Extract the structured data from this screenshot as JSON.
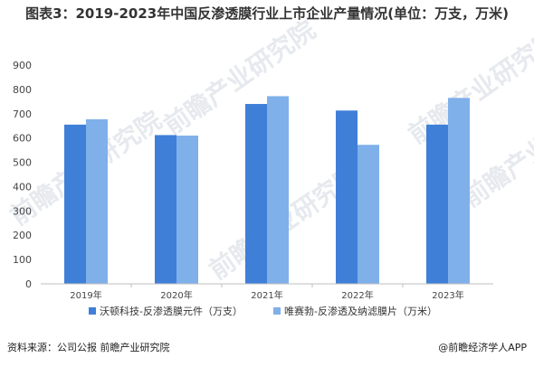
{
  "chart_data": {
    "type": "bar",
    "title": "图表3：2019-2023年中国反渗透膜行业上市企业产量情况(单位：万支，万米)",
    "categories": [
      "2019年",
      "2020年",
      "2021年",
      "2022年",
      "2023年"
    ],
    "series": [
      {
        "name": "沃顿科技-反渗透膜元件（万支）",
        "values": [
          655,
          612,
          740,
          713,
          655
        ],
        "color": "#3f7fd8"
      },
      {
        "name": "唯赛勃-反渗透及纳滤膜片（万米）",
        "values": [
          677,
          610,
          772,
          572,
          765
        ],
        "color": "#7fb0ea"
      }
    ],
    "ylim": [
      0,
      900
    ],
    "yticks": [
      0,
      100,
      200,
      300,
      400,
      500,
      600,
      700,
      800,
      900
    ],
    "grid": false,
    "legend": "bottom"
  },
  "footer": {
    "source": "资料来源：公司公报 前瞻产业研究院",
    "brand": "@前瞻经济学人APP"
  },
  "watermark": "前瞻产业研究院"
}
